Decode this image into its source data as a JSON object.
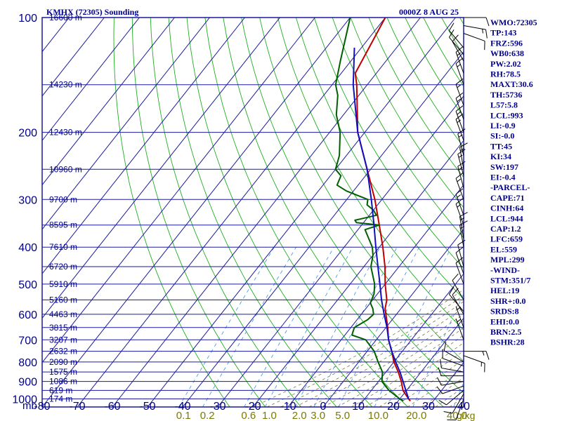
{
  "header": {
    "title": "KMHX (72305) Sounding",
    "time": "0000Z  8 AUG 25"
  },
  "colors": {
    "background": "#ffffff",
    "grid": "#1a1aa0",
    "isotherm": "#1a1aa0",
    "dry_adiabat": "#1faf1f",
    "moist_adiabat": "#7a7a3a",
    "mixing_ratio": "#3a90e0",
    "temperature": "#c00000",
    "dewpoint": "#006000",
    "parcel": "#1010c0",
    "stats_text": "#00008b",
    "temp_labels": "#00008b",
    "mixing_labels": "#7a7a00",
    "wind_barb": "#000000"
  },
  "chart_data": {
    "type": "skew-t",
    "xlabel": "",
    "ylabel": "mb",
    "pressure_levels": [
      100,
      200,
      300,
      400,
      500,
      600,
      700,
      800,
      900,
      1000
    ],
    "minor_pressure_lines": [
      150,
      250,
      350,
      450,
      550,
      650,
      750,
      850,
      950
    ],
    "temperature_ticks": [
      -80,
      -70,
      -60,
      -50,
      -40,
      -30,
      -20,
      -10,
      0,
      10,
      20,
      30,
      40
    ],
    "mixing_ratio_labels": [
      "0.1",
      "0.2",
      "0.6",
      "1.0",
      "2.0",
      "3.0",
      "5.0",
      "10.0",
      "20.0",
      "40.0"
    ],
    "mixing_ratio_unit": "g/kg",
    "mixing_ratio_values": [
      0.1,
      0.2,
      0.6,
      1.0,
      2.0,
      3.0,
      5.0,
      10.0,
      20.0,
      40.0
    ],
    "height_labels": [
      {
        "p": 100,
        "text": "16600 m"
      },
      {
        "p": 150,
        "text": "14230 m"
      },
      {
        "p": 200,
        "text": "12430 m"
      },
      {
        "p": 250,
        "text": "10960 m"
      },
      {
        "p": 300,
        "text": "9700 m"
      },
      {
        "p": 350,
        "text": "8595 m"
      },
      {
        "p": 400,
        "text": "7610 m"
      },
      {
        "p": 450,
        "text": "6720 m"
      },
      {
        "p": 500,
        "text": "5910 m"
      },
      {
        "p": 550,
        "text": "5160 m"
      },
      {
        "p": 600,
        "text": "4463 m"
      },
      {
        "p": 650,
        "text": "3815 m"
      },
      {
        "p": 700,
        "text": "3207 m"
      },
      {
        "p": 750,
        "text": "2632 m"
      },
      {
        "p": 800,
        "text": "2090 m"
      },
      {
        "p": 850,
        "text": "1575 m"
      },
      {
        "p": 900,
        "text": "1086 m"
      },
      {
        "p": 950,
        "text": "619 m"
      },
      {
        "p": 1000,
        "text": "174 m"
      }
    ],
    "series": [
      {
        "name": "temperature",
        "points": [
          [
            1013,
            23.5
          ],
          [
            1000,
            22.5
          ],
          [
            950,
            19
          ],
          [
            900,
            16.5
          ],
          [
            850,
            13.5
          ],
          [
            800,
            10
          ],
          [
            750,
            7
          ],
          [
            700,
            3.5
          ],
          [
            650,
            0.5
          ],
          [
            600,
            -3
          ],
          [
            580,
            -4.5
          ],
          [
            550,
            -6
          ],
          [
            500,
            -10
          ],
          [
            450,
            -14
          ],
          [
            400,
            -19
          ],
          [
            350,
            -25
          ],
          [
            300,
            -32
          ],
          [
            250,
            -41
          ],
          [
            200,
            -52
          ],
          [
            150,
            -63
          ],
          [
            140,
            -66
          ],
          [
            100,
            -70
          ]
        ]
      },
      {
        "name": "dewpoint",
        "points": [
          [
            1013,
            21.5
          ],
          [
            1000,
            20
          ],
          [
            950,
            15
          ],
          [
            900,
            11
          ],
          [
            850,
            9
          ],
          [
            800,
            5.5
          ],
          [
            750,
            2
          ],
          [
            700,
            -3
          ],
          [
            680,
            -8
          ],
          [
            650,
            -9
          ],
          [
            620,
            -7
          ],
          [
            600,
            -6.5
          ],
          [
            580,
            -8
          ],
          [
            560,
            -10
          ],
          [
            530,
            -11
          ],
          [
            500,
            -13
          ],
          [
            450,
            -18
          ],
          [
            420,
            -20
          ],
          [
            400,
            -22
          ],
          [
            360,
            -28
          ],
          [
            350,
            -25
          ],
          [
            345,
            -32
          ],
          [
            340,
            -33
          ],
          [
            330,
            -28
          ],
          [
            320,
            -30
          ],
          [
            310,
            -33
          ],
          [
            300,
            -34
          ],
          [
            285,
            -42
          ],
          [
            275,
            -46
          ],
          [
            260,
            -47
          ],
          [
            250,
            -50
          ],
          [
            230,
            -52
          ],
          [
            200,
            -57
          ],
          [
            180,
            -62
          ],
          [
            160,
            -66
          ],
          [
            150,
            -69
          ],
          [
            130,
            -73
          ],
          [
            100,
            -80
          ]
        ]
      },
      {
        "name": "parcel",
        "points": [
          [
            1000,
            22.5
          ],
          [
            944,
            19.5
          ],
          [
            900,
            17
          ],
          [
            850,
            14
          ],
          [
            800,
            10.5
          ],
          [
            750,
            7
          ],
          [
            700,
            3.5
          ],
          [
            650,
            0.3
          ],
          [
            600,
            -3.5
          ],
          [
            550,
            -7.5
          ],
          [
            500,
            -11.5
          ],
          [
            450,
            -16
          ],
          [
            400,
            -21
          ],
          [
            350,
            -26.5
          ],
          [
            300,
            -33
          ],
          [
            250,
            -41
          ],
          [
            200,
            -52
          ],
          [
            150,
            -64
          ],
          [
            120,
            -72
          ]
        ]
      }
    ],
    "wind_barbs": [
      {
        "p": 1000,
        "dir": 200,
        "spd": 10
      },
      {
        "p": 970,
        "dir": 210,
        "spd": 10
      },
      {
        "p": 950,
        "dir": 230,
        "spd": 10
      },
      {
        "p": 925,
        "dir": 250,
        "spd": 10
      },
      {
        "p": 900,
        "dir": 260,
        "spd": 10
      },
      {
        "p": 870,
        "dir": 270,
        "spd": 10
      },
      {
        "p": 850,
        "dir": 280,
        "spd": 10
      },
      {
        "p": 820,
        "dir": 290,
        "spd": 10
      },
      {
        "p": 800,
        "dir": 300,
        "spd": 10
      },
      {
        "p": 770,
        "dir": 110,
        "spd": 15
      },
      {
        "p": 750,
        "dir": 90,
        "spd": 15
      },
      {
        "p": 700,
        "dir": 340,
        "spd": 5
      },
      {
        "p": 650,
        "dir": 340,
        "spd": 5
      },
      {
        "p": 600,
        "dir": 330,
        "spd": 10
      },
      {
        "p": 590,
        "dir": 320,
        "spd": 10
      },
      {
        "p": 550,
        "dir": 330,
        "spd": 10
      },
      {
        "p": 500,
        "dir": 340,
        "spd": 10
      },
      {
        "p": 470,
        "dir": 340,
        "spd": 10
      },
      {
        "p": 450,
        "dir": 345,
        "spd": 10
      },
      {
        "p": 400,
        "dir": 350,
        "spd": 15
      },
      {
        "p": 380,
        "dir": 350,
        "spd": 15
      },
      {
        "p": 350,
        "dir": 340,
        "spd": 15
      },
      {
        "p": 330,
        "dir": 340,
        "spd": 15
      },
      {
        "p": 300,
        "dir": 340,
        "spd": 15
      },
      {
        "p": 280,
        "dir": 345,
        "spd": 15
      },
      {
        "p": 260,
        "dir": 345,
        "spd": 15
      },
      {
        "p": 250,
        "dir": 350,
        "spd": 15
      },
      {
        "p": 230,
        "dir": 345,
        "spd": 15
      },
      {
        "p": 210,
        "dir": 340,
        "spd": 15
      },
      {
        "p": 200,
        "dir": 340,
        "spd": 15
      },
      {
        "p": 185,
        "dir": 340,
        "spd": 15
      },
      {
        "p": 170,
        "dir": 340,
        "spd": 15
      },
      {
        "p": 150,
        "dir": 340,
        "spd": 15
      },
      {
        "p": 140,
        "dir": 340,
        "spd": 15
      },
      {
        "p": 130,
        "dir": 330,
        "spd": 10
      },
      {
        "p": 125,
        "dir": 320,
        "spd": 10
      },
      {
        "p": 120,
        "dir": 320,
        "spd": 10
      },
      {
        "p": 110,
        "dir": 110,
        "spd": 10
      },
      {
        "p": 105,
        "dir": 100,
        "spd": 15
      },
      {
        "p": 100,
        "dir": 90,
        "spd": 10
      }
    ]
  },
  "stats": [
    "WMO:72305",
    "TP:143",
    "FRZ:596",
    "WB0:638",
    "PW:2.02",
    "RH:78.5",
    "MAXT:30.6",
    "TH:5736",
    "L57:5.8",
    "LCL:993",
    "LI:-0.9",
    "SI:-0.0",
    "TT:45",
    "KI:34",
    "SW:197",
    "EI:-0.4",
    "-PARCEL-",
    "CAPE:71",
    "CINH:64",
    "LCL:944",
    "CAP:1.2",
    "LFC:659",
    "EL:559",
    "MPL:299",
    "-WIND-",
    "STM:351/7",
    "HEL:19",
    "SHR+:0.0",
    "SRDS:8",
    "EHI:0.0",
    "BRN:2.5",
    "BSHR:28"
  ]
}
